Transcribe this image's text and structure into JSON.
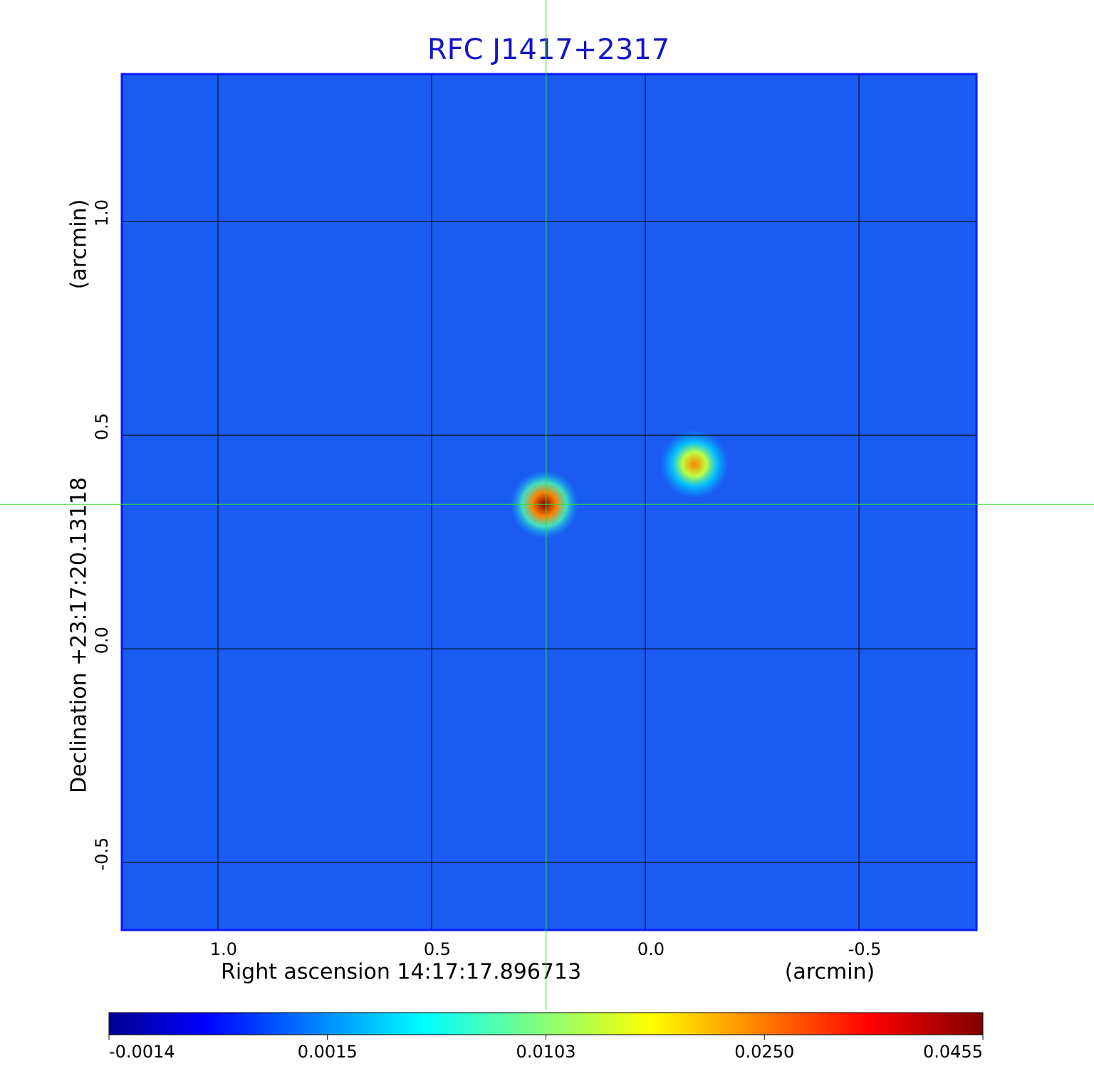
{
  "chart_data": {
    "type": "image",
    "title": "RFC J1417+2317",
    "xlabel": "Right ascension  14:17:17.896713",
    "xunit": "(arcmin)",
    "ylabel": "Declination  +23:17:20.13118",
    "yunit": "(arcmin)",
    "xlim": [
      1.225,
      -0.775
    ],
    "ylim": [
      -0.658,
      1.345
    ],
    "xticks": [
      {
        "value": 1,
        "label": "1.0"
      },
      0.5,
      {
        "value": 0,
        "label": "0.0"
      },
      -0.5
    ],
    "yticks": [
      {
        "value": 1,
        "label": "1.0"
      },
      0.5,
      {
        "value": 0,
        "label": "0.0"
      },
      -0.5
    ],
    "grid": true,
    "crosshair": {
      "x": 0.232,
      "y": 0.338,
      "color": "#33dd33"
    },
    "sources": [
      {
        "x": 0.236,
        "y": 0.338,
        "peak": 0.0455
      },
      {
        "x": -0.115,
        "y": 0.432,
        "peak": 0.025
      }
    ],
    "colorbar": {
      "colormap": "jet",
      "ticks": [
        -0.0014,
        0.0015,
        {
          "value": 0.0103,
          "label": "0.0103"
        },
        {
          "value": 0.025,
          "label": "0.0250"
        },
        0.0455
      ]
    }
  }
}
